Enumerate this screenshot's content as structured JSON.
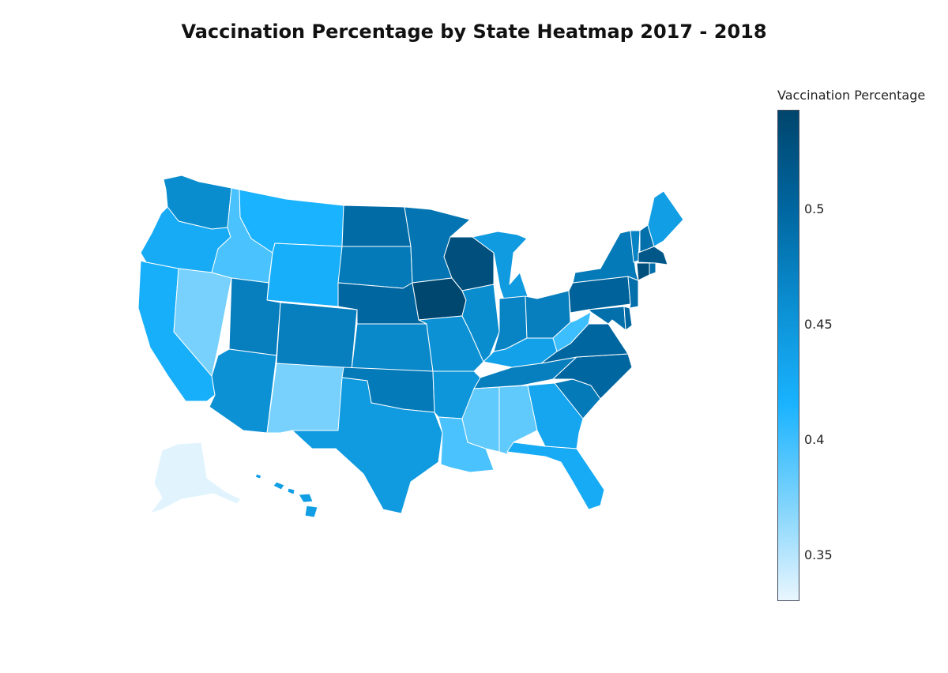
{
  "title": "Vaccination Percentage by State Heatmap 2017 - 2018",
  "colorbar": {
    "title": "Vaccination Percentage",
    "min": 0.33,
    "max": 0.543,
    "colors": [
      "#e9f6fe",
      "#7dd3fc",
      "#1ab3ff",
      "#0b8fd2",
      "#0066a0",
      "#00456c"
    ],
    "ticks": [
      {
        "value": 0.35,
        "label": "0.35"
      },
      {
        "value": 0.4,
        "label": "0.4"
      },
      {
        "value": 0.45,
        "label": "0.45"
      },
      {
        "value": 0.5,
        "label": "0.5"
      }
    ]
  },
  "states": {
    "WA": 0.46,
    "OR": 0.425,
    "CA": 0.42,
    "NV": 0.375,
    "ID": 0.395,
    "MT": 0.415,
    "WY": 0.42,
    "UT": 0.475,
    "AZ": 0.455,
    "NM": 0.375,
    "CO": 0.475,
    "ND": 0.495,
    "SD": 0.48,
    "NE": 0.5,
    "KS": 0.465,
    "OK": 0.48,
    "TX": 0.445,
    "MN": 0.485,
    "IA": 0.54,
    "MO": 0.455,
    "AR": 0.45,
    "LA": 0.395,
    "WI": 0.53,
    "IL": 0.46,
    "MI": 0.445,
    "IN": 0.47,
    "OH": 0.475,
    "KY": 0.435,
    "TN": 0.475,
    "MS": 0.385,
    "AL": 0.385,
    "GA": 0.43,
    "FL": 0.425,
    "SC": 0.48,
    "NC": 0.5,
    "VA": 0.5,
    "WV": 0.4,
    "PA": 0.505,
    "NY": 0.48,
    "ME": 0.44,
    "VT": 0.47,
    "NH": 0.49,
    "MA": 0.52,
    "RI": 0.49,
    "CT": 0.53,
    "NJ": 0.49,
    "DE": 0.5,
    "MD": 0.49,
    "AK": 0.333,
    "HI": 0.44
  }
}
